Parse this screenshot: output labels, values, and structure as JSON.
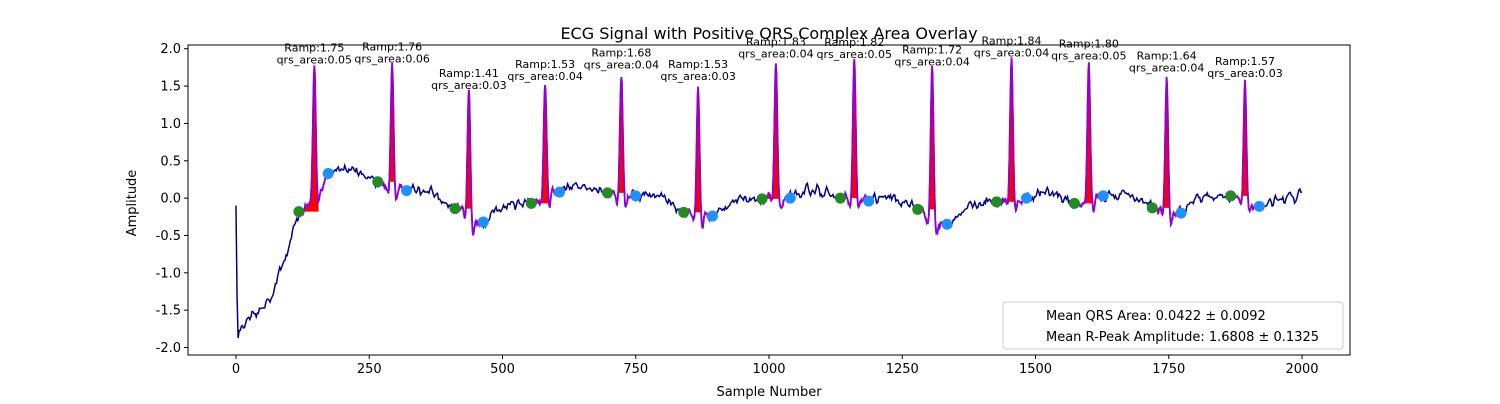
{
  "chart_data": {
    "type": "line",
    "title": "ECG Signal with Positive QRS Complex Area Overlay",
    "xlabel": "Sample Number",
    "ylabel": "Amplitude",
    "xlim": [
      -90,
      2090
    ],
    "ylim": [
      -2.1,
      2.05
    ],
    "xticks": [
      0,
      250,
      500,
      750,
      1000,
      1250,
      1500,
      1750,
      2000
    ],
    "yticks": [
      -2.0,
      -1.5,
      -1.0,
      -0.5,
      0.0,
      0.5,
      1.0,
      1.5,
      2.0
    ],
    "grid": false,
    "legend_position": "bottom-right",
    "colors": {
      "signal": "#00008b",
      "qrs_segment": "#9400d3",
      "qrs_area": "#ff0000",
      "q_onset_marker": "#228b22",
      "s_offset_marker": "#1e90ff"
    },
    "legend": [
      "Mean QRS Area: 0.0422 ± 0.0092",
      "Mean R-Peak Amplitude: 1.6808 ± 0.1325"
    ],
    "beats": [
      {
        "r_x": 147,
        "r_amp": 1.75,
        "qrs_area": 0.05,
        "onset": [
          118,
          -0.18
        ],
        "offset": [
          173,
          0.33
        ],
        "label_lines": [
          "Ramp:1.75",
          "qrs_area:0.05"
        ]
      },
      {
        "r_x": 293,
        "r_amp": 1.76,
        "qrs_area": 0.06,
        "onset": [
          266,
          0.22
        ],
        "offset": [
          320,
          0.1
        ],
        "label_lines": [
          "Ramp:1.76",
          "qrs_area:0.06"
        ]
      },
      {
        "r_x": 437,
        "r_amp": 1.41,
        "qrs_area": 0.03,
        "onset": [
          411,
          -0.14
        ],
        "offset": [
          464,
          -0.32
        ],
        "label_lines": [
          "Ramp:1.41",
          "qrs_area:0.03"
        ]
      },
      {
        "r_x": 580,
        "r_amp": 1.53,
        "qrs_area": 0.04,
        "onset": [
          554,
          -0.07
        ],
        "offset": [
          607,
          0.08
        ],
        "label_lines": [
          "Ramp:1.53",
          "qrs_area:0.04"
        ]
      },
      {
        "r_x": 723,
        "r_amp": 1.68,
        "qrs_area": 0.04,
        "onset": [
          697,
          0.07
        ],
        "offset": [
          750,
          0.03
        ],
        "label_lines": [
          "Ramp:1.68",
          "qrs_area:0.04"
        ]
      },
      {
        "r_x": 867,
        "r_amp": 1.53,
        "qrs_area": 0.03,
        "onset": [
          840,
          -0.19
        ],
        "offset": [
          894,
          -0.24
        ],
        "label_lines": [
          "Ramp:1.53",
          "qrs_area:0.03"
        ]
      },
      {
        "r_x": 1013,
        "r_amp": 1.83,
        "qrs_area": 0.04,
        "onset": [
          987,
          -0.01
        ],
        "offset": [
          1040,
          0.0
        ],
        "label_lines": [
          "Ramp:1.83",
          "qrs_area:0.04"
        ]
      },
      {
        "r_x": 1160,
        "r_amp": 1.82,
        "qrs_area": 0.05,
        "onset": [
          1134,
          0.0
        ],
        "offset": [
          1187,
          -0.04
        ],
        "label_lines": [
          "Ramp:1.82",
          "qrs_area:0.05"
        ]
      },
      {
        "r_x": 1306,
        "r_amp": 1.72,
        "qrs_area": 0.04,
        "onset": [
          1279,
          -0.15
        ],
        "offset": [
          1334,
          -0.35
        ],
        "label_lines": [
          "Ramp:1.72",
          "qrs_area:0.04"
        ]
      },
      {
        "r_x": 1455,
        "r_amp": 1.84,
        "qrs_area": 0.04,
        "onset": [
          1427,
          -0.05
        ],
        "offset": [
          1483,
          0.0
        ],
        "label_lines": [
          "Ramp:1.84",
          "qrs_area:0.04"
        ]
      },
      {
        "r_x": 1600,
        "r_amp": 1.8,
        "qrs_area": 0.05,
        "onset": [
          1573,
          -0.07
        ],
        "offset": [
          1627,
          0.03
        ],
        "label_lines": [
          "Ramp:1.80",
          "qrs_area:0.05"
        ]
      },
      {
        "r_x": 1746,
        "r_amp": 1.64,
        "qrs_area": 0.04,
        "onset": [
          1719,
          -0.13
        ],
        "offset": [
          1773,
          -0.2
        ],
        "label_lines": [
          "Ramp:1.64",
          "qrs_area:0.04"
        ]
      },
      {
        "r_x": 1893,
        "r_amp": 1.57,
        "qrs_area": 0.03,
        "onset": [
          1866,
          0.03
        ],
        "offset": [
          1920,
          -0.11
        ],
        "label_lines": [
          "Ramp:1.57",
          "qrs_area:0.03"
        ]
      }
    ]
  }
}
